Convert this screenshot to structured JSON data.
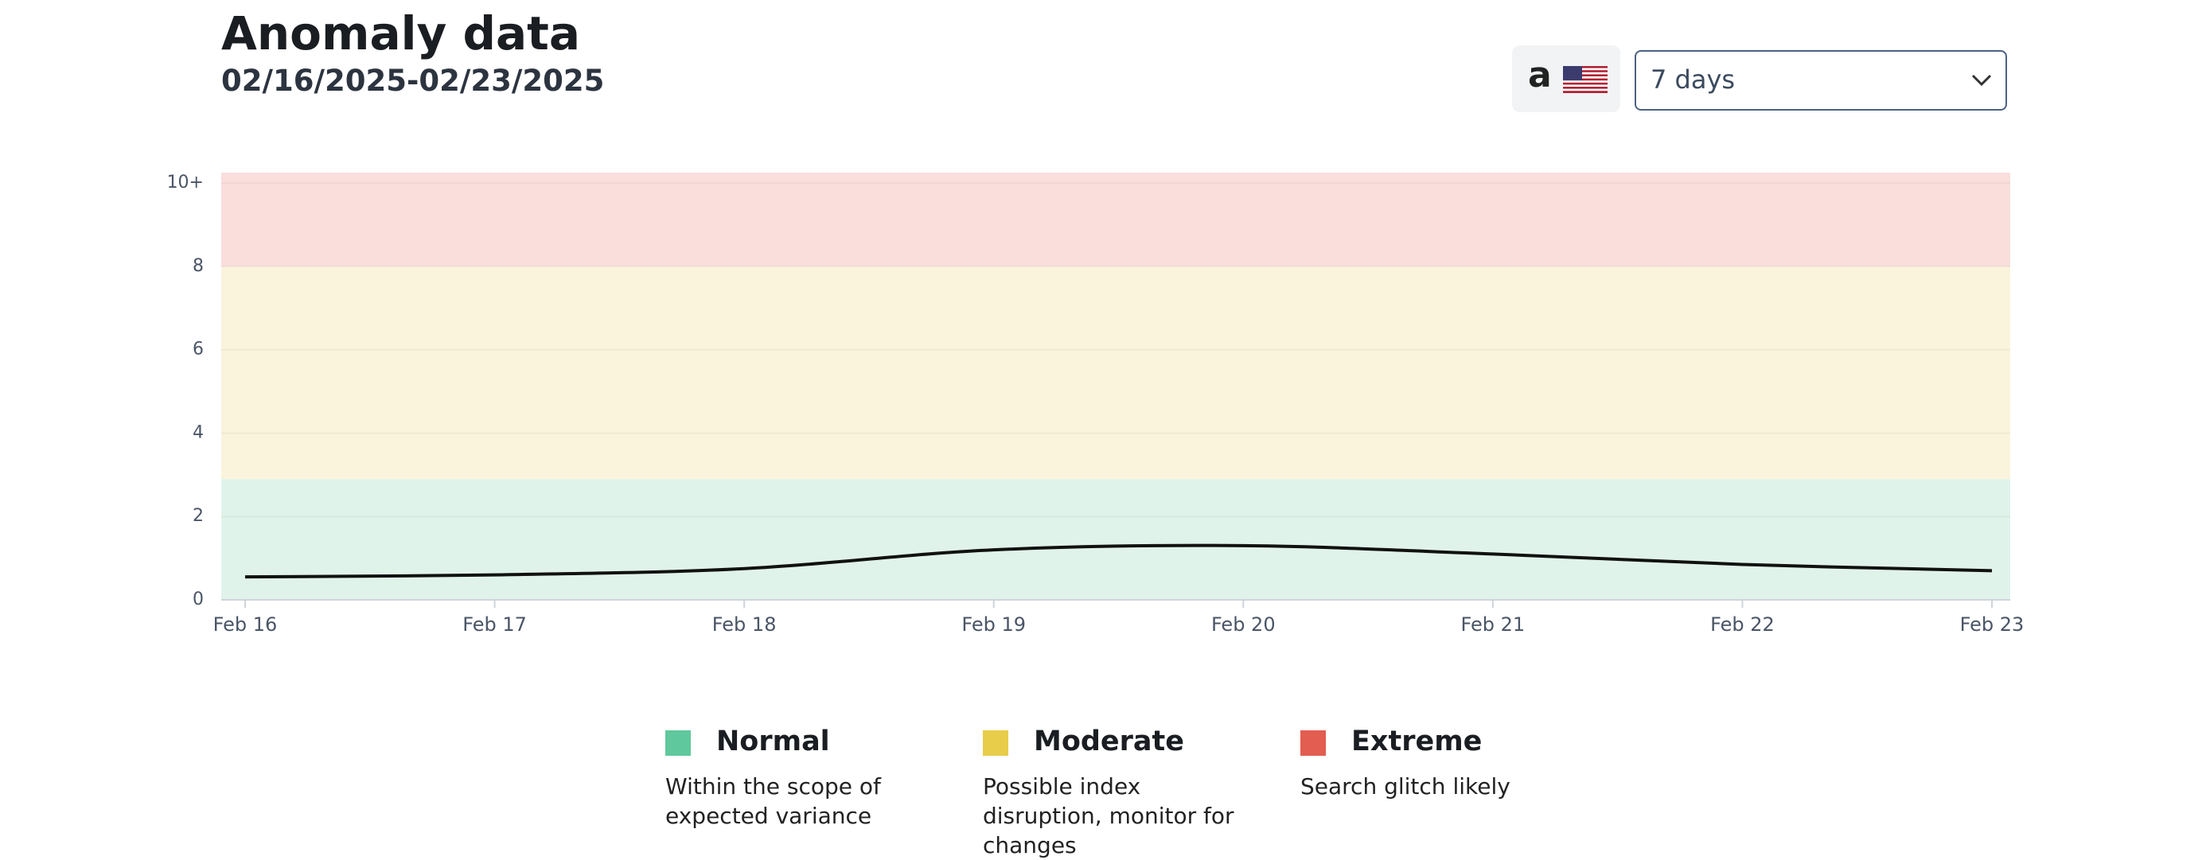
{
  "controls": {
    "marketplace_logo": "a",
    "range": "7 days"
  },
  "chart_data": {
    "type": "line",
    "title": "Anomaly data",
    "subtitle": "02/16/2025-02/23/2025",
    "categories": [
      "Feb 16",
      "Feb 17",
      "Feb 18",
      "Feb 19",
      "Feb 20",
      "Feb 21",
      "Feb 22",
      "Feb 23"
    ],
    "values": [
      0.55,
      0.6,
      0.75,
      1.2,
      1.3,
      1.1,
      0.85,
      0.7
    ],
    "color": "#111111",
    "ylim": [
      0,
      10.25
    ],
    "yticks": [
      0,
      2,
      4,
      6,
      8,
      {
        "value": 10,
        "label": "10+"
      }
    ],
    "grid": true,
    "bands": [
      {
        "name": "Normal",
        "description": "Within the scope of expected variance",
        "color": "#5fc89c",
        "fill": "#e0f3ea",
        "range": [
          0,
          2.9
        ]
      },
      {
        "name": "Moderate",
        "description": "Possible index disruption, monitor for changes",
        "color": "#e8cd4a",
        "fill": "#faf4dc",
        "range": [
          2.9,
          8
        ]
      },
      {
        "name": "Extreme",
        "description": "Search glitch likely",
        "color": "#e35d50",
        "fill": "#f9dedc",
        "range": [
          8,
          10.25
        ]
      }
    ]
  }
}
